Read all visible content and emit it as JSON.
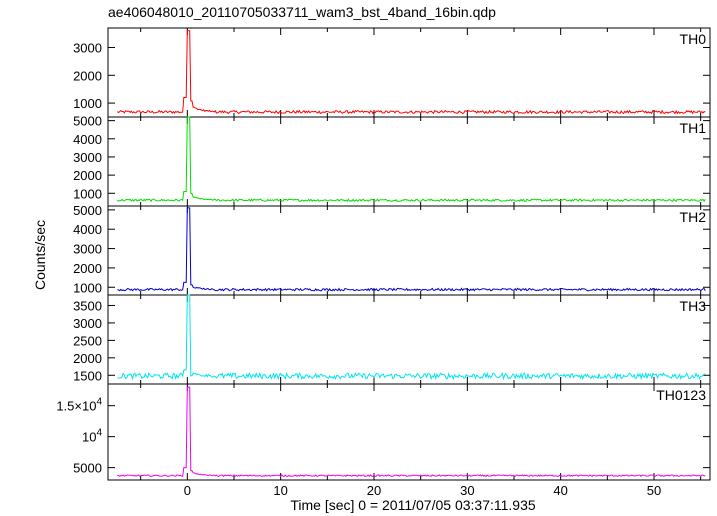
{
  "chart_data": {
    "type": "line",
    "title": "ae406048010_20110705033711_wam3_bst_4band_16bin.qdp",
    "xlabel": "Time [sec] 0 = 2011/07/05 03:37:11.935",
    "ylabel": "Counts/sec",
    "xlim": [
      -8.5,
      56
    ],
    "x_ticks": [
      0,
      10,
      20,
      30,
      40,
      50
    ],
    "panels": [
      {
        "name": "TH0",
        "color": "#ff0000",
        "ylim": [
          500,
          3700
        ],
        "y_ticks": [
          {
            "v": 1000,
            "label": "1000"
          },
          {
            "v": 2000,
            "label": "2000"
          },
          {
            "v": 3000,
            "label": "3000"
          }
        ],
        "baseline": 680,
        "noise": 50,
        "pre_burst": 1200,
        "peak": 3600
      },
      {
        "name": "TH1",
        "color": "#00dd00",
        "ylim": [
          300,
          5200
        ],
        "y_ticks": [
          {
            "v": 1000,
            "label": "1000"
          },
          {
            "v": 2000,
            "label": "2000"
          },
          {
            "v": 3000,
            "label": "3000"
          },
          {
            "v": 4000,
            "label": "4000"
          },
          {
            "v": 5000,
            "label": "5000"
          }
        ],
        "baseline": 620,
        "noise": 60,
        "pre_burst": 1100,
        "peak": 5200
      },
      {
        "name": "TH2",
        "color": "#0000cc",
        "ylim": [
          600,
          5200
        ],
        "y_ticks": [
          {
            "v": 1000,
            "label": "1000"
          },
          {
            "v": 2000,
            "label": "2000"
          },
          {
            "v": 3000,
            "label": "3000"
          },
          {
            "v": 4000,
            "label": "4000"
          },
          {
            "v": 5000,
            "label": "5000"
          }
        ],
        "baseline": 880,
        "noise": 60,
        "pre_burst": 1250,
        "peak": 5100
      },
      {
        "name": "TH3",
        "color": "#00e5ee",
        "ylim": [
          1250,
          3800
        ],
        "y_ticks": [
          {
            "v": 1500,
            "label": "1500"
          },
          {
            "v": 2000,
            "label": "2000"
          },
          {
            "v": 2500,
            "label": "2500"
          },
          {
            "v": 3000,
            "label": "3000"
          },
          {
            "v": 3500,
            "label": "3500"
          }
        ],
        "baseline": 1480,
        "noise": 80,
        "pre_burst": 1650,
        "peak": 3800
      },
      {
        "name": "TH0123",
        "color": "#ee00ee",
        "ylim": [
          3000,
          18500
        ],
        "y_ticks": [
          {
            "v": 5000,
            "label": "5000"
          },
          {
            "v": 10000,
            "label": "10^4"
          },
          {
            "v": 15000,
            "label": "1.5×10^4"
          }
        ],
        "baseline": 3700,
        "noise": 120,
        "pre_burst": 5000,
        "peak": 18000
      }
    ]
  }
}
